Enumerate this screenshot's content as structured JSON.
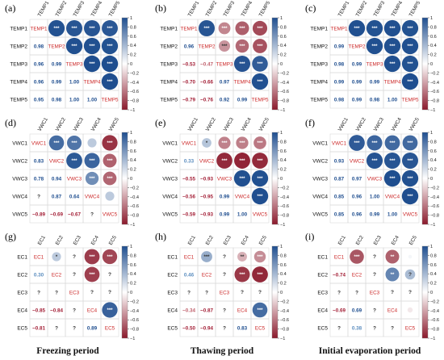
{
  "colors": {
    "pos": "#1f4e8f",
    "neg": "#8b1a2c",
    "mid": "#ffffff",
    "diag_label": "#cc2a2a",
    "grid": "#d9d9d9"
  },
  "column_labels": [
    "Freezing period",
    "Thawing period",
    "Initial evaporation period"
  ],
  "chart_data": [
    {
      "type": "heatmap",
      "panel": "(a)",
      "row": 0,
      "col": 0,
      "variables": [
        "TEMP1",
        "TEMP2",
        "TEMP3",
        "TEMP4",
        "TEMP5"
      ],
      "lower": [
        [
          null,
          null,
          null,
          null,
          null
        ],
        [
          "0.98",
          null,
          null,
          null,
          null
        ],
        [
          "0.96",
          "0.99",
          null,
          null,
          null
        ],
        [
          "0.96",
          "0.99",
          "1.00",
          null,
          null
        ],
        [
          "0.95",
          "0.98",
          "1.00",
          "1.00",
          null
        ]
      ],
      "upper": [
        [
          null,
          0.98,
          0.96,
          0.96,
          0.95
        ],
        [
          null,
          null,
          0.99,
          0.99,
          0.98
        ],
        [
          null,
          null,
          null,
          1.0,
          1.0
        ],
        [
          null,
          null,
          null,
          null,
          1.0
        ],
        [
          null,
          null,
          null,
          null,
          null
        ]
      ],
      "sig": [
        [
          null,
          "***",
          "***",
          "***",
          "***"
        ],
        [
          null,
          null,
          "***",
          "***",
          "***"
        ],
        [
          null,
          null,
          null,
          "***",
          "***"
        ],
        [
          null,
          null,
          null,
          null,
          "***"
        ],
        [
          null,
          null,
          null,
          null,
          null
        ]
      ],
      "colorbar": {
        "ticks": [
          "1",
          "0.8",
          "0.6",
          "0.4",
          "0.2",
          "0",
          "−0.2",
          "−0.4",
          "−0.6",
          "−0.8",
          "−1"
        ],
        "range": [
          -1,
          1
        ]
      }
    },
    {
      "type": "heatmap",
      "panel": "(b)",
      "row": 0,
      "col": 1,
      "variables": [
        "TEMP1",
        "TEMP2",
        "TEMP3",
        "TEMP4",
        "TEMP5"
      ],
      "lower": [
        [
          null,
          null,
          null,
          null,
          null
        ],
        [
          "0.96",
          null,
          null,
          null,
          null
        ],
        [
          "−0.53",
          "−0.47",
          null,
          null,
          null
        ],
        [
          "−0.70",
          "−0.66",
          "0.97",
          null,
          null
        ],
        [
          "−0.79",
          "−0.76",
          "0.92",
          "0.99",
          null
        ]
      ],
      "upper": [
        [
          null,
          0.96,
          -0.53,
          -0.7,
          -0.79
        ],
        [
          null,
          null,
          -0.47,
          -0.66,
          -0.76
        ],
        [
          null,
          null,
          null,
          0.97,
          0.92
        ],
        [
          null,
          null,
          null,
          null,
          0.99
        ],
        [
          null,
          null,
          null,
          null,
          null
        ]
      ],
      "sig": [
        [
          null,
          "***",
          "***",
          "***",
          "***"
        ],
        [
          null,
          null,
          "***",
          "***",
          "***"
        ],
        [
          null,
          null,
          null,
          "***",
          "***"
        ],
        [
          null,
          null,
          null,
          null,
          "***"
        ],
        [
          null,
          null,
          null,
          null,
          null
        ]
      ],
      "colorbar": {
        "ticks": [
          "1",
          "0.8",
          "0.6",
          "0.4",
          "0.2",
          "0",
          "−0.2",
          "−0.4",
          "−0.6",
          "−0.8",
          "−1"
        ],
        "range": [
          -1,
          1
        ]
      }
    },
    {
      "type": "heatmap",
      "panel": "(c)",
      "row": 0,
      "col": 2,
      "variables": [
        "TEMP1",
        "TEMP2",
        "TEMP3",
        "TEMP4",
        "TEMP5"
      ],
      "lower": [
        [
          null,
          null,
          null,
          null,
          null
        ],
        [
          "0.99",
          null,
          null,
          null,
          null
        ],
        [
          "0.98",
          "0.99",
          null,
          null,
          null
        ],
        [
          "0.99",
          "0.99",
          "0.99",
          null,
          null
        ],
        [
          "0.98",
          "0.99",
          "0.98",
          "1.00",
          null
        ]
      ],
      "upper": [
        [
          null,
          0.99,
          0.98,
          0.99,
          0.98
        ],
        [
          null,
          null,
          0.99,
          0.99,
          0.99
        ],
        [
          null,
          null,
          null,
          0.99,
          0.98
        ],
        [
          null,
          null,
          null,
          null,
          1.0
        ],
        [
          null,
          null,
          null,
          null,
          null
        ]
      ],
      "sig": [
        [
          null,
          "***",
          "***",
          "***",
          "***"
        ],
        [
          null,
          null,
          "***",
          "***",
          "***"
        ],
        [
          null,
          null,
          null,
          "***",
          "***"
        ],
        [
          null,
          null,
          null,
          null,
          "***"
        ],
        [
          null,
          null,
          null,
          null,
          null
        ]
      ],
      "colorbar": {
        "ticks": [
          "1",
          "0.8",
          "0.6",
          "0.4",
          "0.2",
          "0",
          "−0.2",
          "−0.4",
          "−0.6",
          "−0.8",
          "−1"
        ],
        "range": [
          -1,
          1
        ]
      }
    },
    {
      "type": "heatmap",
      "panel": "(d)",
      "row": 1,
      "col": 0,
      "variables": [
        "VWC1",
        "VWC2",
        "VWC3",
        "VWC4",
        "VWC5"
      ],
      "lower": [
        [
          null,
          null,
          null,
          null,
          null
        ],
        [
          "0.83",
          null,
          null,
          null,
          null
        ],
        [
          "0.78",
          "0.94",
          null,
          null,
          null
        ],
        [
          "?",
          "0.87",
          "0.64",
          null,
          null
        ],
        [
          "−0.89",
          "−0.69",
          "−0.67",
          "?",
          null
        ]
      ],
      "upper": [
        [
          null,
          0.83,
          0.78,
          0.3,
          -0.89
        ],
        [
          null,
          null,
          0.94,
          0.87,
          -0.69
        ],
        [
          null,
          null,
          null,
          0.64,
          -0.67
        ],
        [
          null,
          null,
          null,
          null,
          0.3
        ],
        [
          null,
          null,
          null,
          null,
          null
        ]
      ],
      "sig": [
        [
          null,
          "***",
          "***",
          "",
          "***"
        ],
        [
          null,
          null,
          "***",
          "***",
          "***"
        ],
        [
          null,
          null,
          null,
          "***",
          "***"
        ],
        [
          null,
          null,
          null,
          null,
          ""
        ],
        [
          null,
          null,
          null,
          null,
          null
        ]
      ],
      "colorbar": {
        "ticks": [
          "1",
          "0.8",
          "0.6",
          "0.4",
          "0.2",
          "0",
          "−0.2",
          "−0.4",
          "−0.6",
          "−0.8",
          "−1"
        ],
        "range": [
          -1,
          1
        ]
      }
    },
    {
      "type": "heatmap",
      "panel": "(e)",
      "row": 1,
      "col": 1,
      "variables": [
        "VWC1",
        "VWC2",
        "VWC3",
        "VWC4",
        "VWC5"
      ],
      "lower": [
        [
          null,
          null,
          null,
          null,
          null
        ],
        [
          "0.33",
          null,
          null,
          null,
          null
        ],
        [
          "−0.55",
          "−0.93",
          null,
          null,
          null
        ],
        [
          "−0.56",
          "−0.95",
          "0.99",
          null,
          null
        ],
        [
          "−0.59",
          "−0.93",
          "0.99",
          "1.00",
          null
        ]
      ],
      "upper": [
        [
          null,
          0.33,
          -0.55,
          -0.56,
          -0.59
        ],
        [
          null,
          null,
          -0.93,
          -0.95,
          -0.93
        ],
        [
          null,
          null,
          null,
          0.99,
          0.99
        ],
        [
          null,
          null,
          null,
          null,
          1.0
        ],
        [
          null,
          null,
          null,
          null,
          null
        ]
      ],
      "sig": [
        [
          null,
          "*",
          "***",
          "***",
          "***"
        ],
        [
          null,
          null,
          "***",
          "***",
          "***"
        ],
        [
          null,
          null,
          null,
          "***",
          "***"
        ],
        [
          null,
          null,
          null,
          null,
          "***"
        ],
        [
          null,
          null,
          null,
          null,
          null
        ]
      ],
      "colorbar": {
        "ticks": [
          "1",
          "0.8",
          "0.6",
          "0.4",
          "0.2",
          "0",
          "−0.2",
          "−0.4",
          "−0.6",
          "−0.8",
          "−1"
        ],
        "range": [
          -1,
          1
        ]
      }
    },
    {
      "type": "heatmap",
      "panel": "(f)",
      "row": 1,
      "col": 2,
      "variables": [
        "VWC1",
        "VWC2",
        "VWC3",
        "VWC4",
        "VWC5"
      ],
      "lower": [
        [
          null,
          null,
          null,
          null,
          null
        ],
        [
          "0.93",
          null,
          null,
          null,
          null
        ],
        [
          "0.87",
          "0.97",
          null,
          null,
          null
        ],
        [
          "0.85",
          "0.96",
          "1.00",
          null,
          null
        ],
        [
          "0.85",
          "0.96",
          "0.99",
          "1.00",
          null
        ]
      ],
      "upper": [
        [
          null,
          0.93,
          0.87,
          0.85,
          0.85
        ],
        [
          null,
          null,
          0.97,
          0.96,
          0.96
        ],
        [
          null,
          null,
          null,
          1.0,
          0.99
        ],
        [
          null,
          null,
          null,
          null,
          1.0
        ],
        [
          null,
          null,
          null,
          null,
          null
        ]
      ],
      "sig": [
        [
          null,
          "***",
          "***",
          "***",
          "***"
        ],
        [
          null,
          null,
          "***",
          "***",
          "***"
        ],
        [
          null,
          null,
          null,
          "***",
          "***"
        ],
        [
          null,
          null,
          null,
          null,
          "***"
        ],
        [
          null,
          null,
          null,
          null,
          null
        ]
      ],
      "colorbar": {
        "ticks": [
          "1",
          "0.8",
          "0.6",
          "0.4",
          "0.2",
          "0",
          "−0.2",
          "−0.4",
          "−0.6",
          "−0.8",
          "−1"
        ],
        "range": [
          -1,
          1
        ]
      }
    },
    {
      "type": "heatmap",
      "panel": "(g)",
      "row": 2,
      "col": 0,
      "variables": [
        "EC1",
        "EC2",
        "EC3",
        "EC4",
        "EC5"
      ],
      "lower": [
        [
          null,
          null,
          null,
          null,
          null
        ],
        [
          "0.30",
          null,
          null,
          null,
          null
        ],
        [
          "?",
          "?",
          null,
          null,
          null
        ],
        [
          "−0.85",
          "−0.84",
          "?",
          null,
          null
        ],
        [
          "−0.81",
          "?",
          "?",
          "0.89",
          null
        ]
      ],
      "upper": [
        [
          null,
          0.3,
          null,
          -0.85,
          -0.81
        ],
        [
          null,
          null,
          null,
          -0.84,
          null
        ],
        [
          null,
          null,
          null,
          null,
          null
        ],
        [
          null,
          null,
          null,
          null,
          0.89
        ],
        [
          null,
          null,
          null,
          null,
          null
        ]
      ],
      "sig": [
        [
          null,
          "*",
          "?",
          "***",
          "***"
        ],
        [
          null,
          null,
          "?",
          "***",
          "?"
        ],
        [
          null,
          null,
          null,
          "?",
          "?"
        ],
        [
          null,
          null,
          null,
          null,
          "***"
        ],
        [
          null,
          null,
          null,
          null,
          null
        ]
      ],
      "colorbar": {
        "ticks": [
          "1",
          "0.8",
          "0.6",
          "0.4",
          "0.2",
          "0",
          "−0.2",
          "−0.4",
          "−0.6",
          "−0.8",
          "−1"
        ],
        "range": [
          -1,
          1
        ]
      }
    },
    {
      "type": "heatmap",
      "panel": "(h)",
      "row": 2,
      "col": 1,
      "variables": [
        "EC1",
        "EC2",
        "EC3",
        "EC4",
        "EC5"
      ],
      "lower": [
        [
          null,
          null,
          null,
          null,
          null
        ],
        [
          "0.46",
          null,
          null,
          null,
          null
        ],
        [
          "?",
          "?",
          null,
          null,
          null
        ],
        [
          "−0.34",
          "−0.87",
          "?",
          null,
          null
        ],
        [
          "−0.50",
          "−0.94",
          "?",
          "0.83",
          null
        ]
      ],
      "upper": [
        [
          null,
          0.46,
          null,
          -0.34,
          -0.5
        ],
        [
          null,
          null,
          null,
          -0.87,
          -0.94
        ],
        [
          null,
          null,
          null,
          null,
          null
        ],
        [
          null,
          null,
          null,
          null,
          0.83
        ],
        [
          null,
          null,
          null,
          null,
          null
        ]
      ],
      "sig": [
        [
          null,
          "***",
          "?",
          "**",
          "***"
        ],
        [
          null,
          null,
          "?",
          "***",
          "***"
        ],
        [
          null,
          null,
          null,
          "?",
          "?"
        ],
        [
          null,
          null,
          null,
          null,
          "***"
        ],
        [
          null,
          null,
          null,
          null,
          null
        ]
      ],
      "colorbar": {
        "ticks": [
          "1",
          "0.8",
          "0.6",
          "0.4",
          "0.2",
          "0",
          "−0.2",
          "−0.4",
          "−0.6",
          "−0.8",
          "−1"
        ],
        "range": [
          -1,
          1
        ]
      }
    },
    {
      "type": "heatmap",
      "panel": "(i)",
      "row": 2,
      "col": 2,
      "variables": [
        "EC1",
        "EC2",
        "EC3",
        "EC4",
        "EC5"
      ],
      "lower": [
        [
          null,
          null,
          null,
          null,
          null
        ],
        [
          "−0.74",
          null,
          null,
          null,
          null
        ],
        [
          "?",
          "?",
          null,
          null,
          null
        ],
        [
          "−0.69",
          "0.69",
          "?",
          null,
          null
        ],
        [
          "?",
          "0.38",
          "?",
          "?",
          null
        ]
      ],
      "upper": [
        [
          null,
          -0.74,
          null,
          -0.69,
          0.05
        ],
        [
          null,
          null,
          null,
          0.69,
          0.38
        ],
        [
          null,
          null,
          null,
          null,
          null
        ],
        [
          null,
          null,
          null,
          null,
          -0.1
        ],
        [
          null,
          null,
          null,
          null,
          null
        ]
      ],
      "sig": [
        [
          null,
          "***",
          "?",
          "**",
          ""
        ],
        [
          null,
          null,
          "?",
          "**",
          "?"
        ],
        [
          null,
          null,
          null,
          "?",
          "?"
        ],
        [
          null,
          null,
          null,
          null,
          ""
        ],
        [
          null,
          null,
          null,
          null,
          null
        ]
      ],
      "colorbar": {
        "ticks": [
          "1",
          "0.8",
          "0.6",
          "0.4",
          "0.2",
          "0",
          "−0.2",
          "−0.4",
          "−0.6",
          "−0.8",
          "−1"
        ],
        "range": [
          -1,
          1
        ]
      }
    }
  ]
}
